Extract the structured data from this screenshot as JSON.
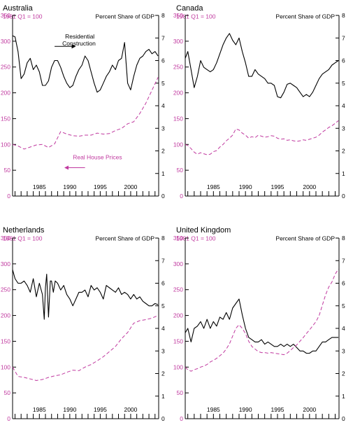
{
  "colors": {
    "prices": "#c0399f",
    "construction": "#000000",
    "axis": "#000000"
  },
  "chart_data": [
    {
      "type": "line",
      "title": "Australia",
      "left_axis_label": "1981 Q1 = 100",
      "right_axis_label": "Percent Share of GDP",
      "left_ylim": [
        0,
        350
      ],
      "left_ticks": [
        "0",
        "50",
        "100",
        "150",
        "200",
        "250",
        "300",
        "350"
      ],
      "right_ylim": [
        0,
        8
      ],
      "right_ticks": [
        "0",
        "1",
        "2",
        "3",
        "4",
        "5",
        "6",
        "7",
        "8"
      ],
      "xlim": [
        1980.6,
        2004.6
      ],
      "x_ticks": [
        "1985",
        "1990",
        "1995",
        "2000"
      ],
      "x_tick_values": [
        1985,
        1990,
        1995,
        2000
      ],
      "annotations": [
        "Residential Construction",
        "Real House Prices"
      ],
      "series": [
        {
          "axis": "right",
          "style": "solid",
          "x": [
            1980.6,
            1981,
            1981.5,
            1982,
            1982.5,
            1983,
            1983.5,
            1984,
            1984.5,
            1985,
            1985.5,
            1986,
            1986.5,
            1987,
            1987.5,
            1988,
            1988.5,
            1989,
            1989.5,
            1990,
            1990.5,
            1991,
            1991.5,
            1992,
            1992.5,
            1993,
            1993.5,
            1994,
            1994.5,
            1995,
            1995.5,
            1996,
            1996.5,
            1997,
            1997.5,
            1998,
            1998.5,
            1999,
            1999.5,
            2000,
            2000.5,
            2001,
            2001.5,
            2002,
            2002.5,
            2003,
            2003.5,
            2004,
            2004.5
          ],
          "values": [
            7.1,
            7.05,
            6.4,
            5.2,
            5.4,
            5.9,
            6.1,
            5.6,
            5.8,
            5.5,
            4.9,
            4.9,
            5.1,
            5.7,
            6.0,
            6.0,
            5.7,
            5.3,
            5.0,
            4.8,
            4.9,
            5.3,
            5.6,
            5.8,
            6.2,
            6.0,
            5.5,
            5.0,
            4.6,
            4.7,
            5.0,
            5.3,
            5.5,
            5.8,
            5.6,
            6.0,
            6.1,
            6.8,
            5.0,
            4.7,
            5.3,
            5.8,
            6.1,
            6.2,
            6.4,
            6.5,
            6.3,
            6.4,
            6.2
          ]
        },
        {
          "axis": "left",
          "style": "dashed",
          "x": [
            1980.6,
            1981.5,
            1982.5,
            1983.5,
            1984.5,
            1985.5,
            1986.5,
            1987.5,
            1988.5,
            1989.5,
            1990.5,
            1991.5,
            1992.5,
            1993.5,
            1994.5,
            1995.5,
            1996.5,
            1997.5,
            1998.5,
            1999.5,
            2000.5,
            2001.5,
            2002.5,
            2003.5,
            2004.5
          ],
          "values": [
            100,
            97,
            91,
            95,
            99,
            100,
            94,
            101,
            125,
            120,
            117,
            116,
            118,
            118,
            122,
            120,
            121,
            127,
            131,
            140,
            144,
            160,
            180,
            205,
            230
          ]
        }
      ]
    },
    {
      "type": "line",
      "title": "Canada",
      "left_axis_label": "1981 Q1 = 100",
      "right_axis_label": "Percent Share of GDP",
      "left_ylim": [
        0,
        350
      ],
      "left_ticks": [
        "0",
        "50",
        "100",
        "150",
        "200",
        "250",
        "300",
        "350"
      ],
      "right_ylim": [
        0,
        8
      ],
      "right_ticks": [
        "0",
        "1",
        "2",
        "3",
        "4",
        "5",
        "6",
        "7",
        "8"
      ],
      "xlim": [
        1980.6,
        2004.6
      ],
      "x_ticks": [
        "1985",
        "1990",
        "1995",
        "2000"
      ],
      "x_tick_values": [
        1985,
        1990,
        1995,
        2000
      ],
      "annotations": [],
      "series": [
        {
          "axis": "right",
          "style": "solid",
          "x": [
            1980.6,
            1981,
            1981.5,
            1982,
            1982.5,
            1983,
            1983.5,
            1984,
            1984.5,
            1985,
            1985.5,
            1986,
            1986.5,
            1987,
            1987.5,
            1988,
            1988.5,
            1989,
            1989.5,
            1990,
            1990.5,
            1991,
            1991.5,
            1992,
            1992.5,
            1993,
            1993.5,
            1994,
            1994.5,
            1995,
            1995.5,
            1996,
            1996.5,
            1997,
            1997.5,
            1998,
            1998.5,
            1999,
            1999.5,
            2000,
            2000.5,
            2001,
            2001.5,
            2002,
            2002.5,
            2003,
            2003.5,
            2004,
            2004.5
          ],
          "values": [
            6.1,
            6.4,
            5.6,
            4.8,
            5.3,
            6.0,
            5.7,
            5.6,
            5.5,
            5.6,
            5.9,
            6.3,
            6.7,
            7.0,
            7.2,
            6.9,
            6.7,
            7.0,
            6.4,
            5.9,
            5.3,
            5.3,
            5.6,
            5.4,
            5.3,
            5.2,
            5.0,
            5.0,
            4.9,
            4.4,
            4.35,
            4.6,
            4.95,
            5.0,
            4.9,
            4.8,
            4.6,
            4.4,
            4.5,
            4.4,
            4.6,
            4.9,
            5.2,
            5.4,
            5.5,
            5.6,
            5.8,
            5.9,
            6.0
          ]
        },
        {
          "axis": "left",
          "style": "dashed",
          "x": [
            1980.6,
            1981,
            1981.5,
            1982,
            1982.5,
            1983,
            1983.5,
            1984,
            1984.5,
            1985,
            1985.5,
            1986,
            1986.5,
            1987,
            1987.5,
            1988,
            1988.5,
            1989,
            1989.5,
            1990,
            1990.5,
            1991,
            1991.5,
            1992,
            1992.5,
            1993,
            1993.5,
            1994,
            1994.5,
            1995,
            1995.5,
            1996,
            1996.5,
            1997,
            1997.5,
            1998,
            1998.5,
            1999,
            1999.5,
            2000,
            2000.5,
            2001,
            2001.5,
            2002,
            2002.5,
            2003,
            2003.5,
            2004,
            2004.5
          ],
          "values": [
            100,
            98,
            92,
            85,
            81,
            84,
            82,
            80,
            81,
            86,
            88,
            95,
            100,
            107,
            112,
            118,
            130,
            128,
            122,
            118,
            112,
            115,
            113,
            118,
            116,
            114,
            115,
            117,
            116,
            112,
            110,
            111,
            108,
            109,
            107,
            106,
            107,
            109,
            108,
            110,
            112,
            114,
            118,
            124,
            128,
            133,
            136,
            141,
            146
          ]
        }
      ]
    },
    {
      "type": "line",
      "title": "Netherlands",
      "left_axis_label": "1981 Q1 = 100",
      "right_axis_label": "Percent Share of GDP",
      "left_ylim": [
        0,
        350
      ],
      "left_ticks": [
        "0",
        "50",
        "100",
        "150",
        "200",
        "250",
        "300",
        "350"
      ],
      "right_ylim": [
        0,
        8
      ],
      "right_ticks": [
        "0",
        "1",
        "2",
        "3",
        "4",
        "5",
        "6",
        "7",
        "8"
      ],
      "xlim": [
        1980.6,
        2004.6
      ],
      "x_ticks": [
        "1985",
        "1990",
        "1995",
        "2000"
      ],
      "x_tick_values": [
        1985,
        1990,
        1995,
        2000
      ],
      "annotations": [],
      "series": [
        {
          "axis": "right",
          "style": "solid",
          "x": [
            1980.6,
            1981,
            1981.5,
            1982,
            1982.5,
            1983,
            1983.5,
            1984,
            1984.5,
            1985,
            1985.5,
            1985.8,
            1986,
            1986.2,
            1986.5,
            1986.8,
            1987,
            1987.3,
            1987.6,
            1988,
            1988.5,
            1989,
            1989.5,
            1990,
            1990.5,
            1991,
            1991.5,
            1992,
            1992.5,
            1993,
            1993.5,
            1994,
            1994.5,
            1995,
            1995.5,
            1996,
            1996.5,
            1997,
            1997.5,
            1998,
            1998.5,
            1999,
            1999.5,
            2000,
            2000.5,
            2001,
            2001.5,
            2002,
            2002.5,
            2003,
            2003.5,
            2004,
            2004.5
          ],
          "values": [
            6.6,
            6.2,
            6.0,
            6.0,
            6.1,
            5.9,
            5.6,
            6.2,
            5.4,
            6.0,
            5.5,
            4.4,
            5.8,
            6.4,
            4.5,
            6.1,
            6.1,
            5.6,
            6.1,
            6.0,
            5.7,
            5.9,
            5.5,
            5.3,
            5.0,
            5.3,
            5.6,
            5.6,
            5.7,
            5.4,
            5.9,
            5.7,
            5.8,
            5.6,
            5.3,
            5.9,
            5.8,
            5.7,
            5.6,
            5.8,
            5.5,
            5.6,
            5.5,
            5.3,
            5.5,
            5.3,
            5.4,
            5.2,
            5.1,
            5.0,
            5.0,
            5.1,
            5.05
          ]
        },
        {
          "axis": "left",
          "style": "dashed",
          "x": [
            1980.6,
            1981.5,
            1982.5,
            1983.5,
            1984.5,
            1985.5,
            1986.5,
            1987.5,
            1988.5,
            1989.5,
            1990.5,
            1991.5,
            1992.5,
            1993.5,
            1994.5,
            1995.5,
            1996.5,
            1997.5,
            1998.5,
            1999.5,
            2000.5,
            2001.5,
            2002.5,
            2003.5,
            2004.5
          ],
          "values": [
            100,
            82,
            80,
            77,
            74,
            76,
            80,
            83,
            85,
            90,
            94,
            93,
            100,
            105,
            112,
            120,
            130,
            140,
            155,
            167,
            185,
            190,
            192,
            195,
            200
          ]
        }
      ]
    },
    {
      "type": "line",
      "title": "United Kingdom",
      "left_axis_label": "1981 Q1 = 100",
      "right_axis_label": "Percent Share of GDP",
      "left_ylim": [
        0,
        350
      ],
      "left_ticks": [
        "0",
        "50",
        "100",
        "150",
        "200",
        "250",
        "300",
        "350"
      ],
      "right_ylim": [
        0,
        8
      ],
      "right_ticks": [
        "0",
        "1",
        "2",
        "3",
        "4",
        "5",
        "6",
        "7",
        "8"
      ],
      "xlim": [
        1980.6,
        2004.6
      ],
      "x_ticks": [
        "1985",
        "1990",
        "1995",
        "2000"
      ],
      "x_tick_values": [
        1985,
        1990,
        1995,
        2000
      ],
      "annotations": [],
      "series": [
        {
          "axis": "right",
          "style": "solid",
          "x": [
            1980.6,
            1981,
            1981.5,
            1982,
            1982.5,
            1983,
            1983.5,
            1984,
            1984.5,
            1985,
            1985.5,
            1986,
            1986.5,
            1987,
            1987.5,
            1988,
            1988.5,
            1989,
            1989.5,
            1990,
            1990.5,
            1991,
            1991.5,
            1992,
            1992.5,
            1993,
            1993.5,
            1994,
            1994.5,
            1995,
            1995.5,
            1996,
            1996.5,
            1997,
            1997.5,
            1998,
            1998.5,
            1999,
            1999.5,
            2000,
            2000.5,
            2001,
            2001.5,
            2002,
            2002.5,
            2003,
            2003.5,
            2004,
            2004.5
          ],
          "values": [
            3.8,
            4.0,
            3.4,
            4.0,
            4.1,
            4.3,
            4.0,
            4.4,
            4.0,
            4.3,
            4.1,
            4.5,
            4.4,
            4.7,
            4.4,
            4.9,
            5.1,
            5.3,
            4.6,
            4.0,
            3.6,
            3.5,
            3.4,
            3.4,
            3.5,
            3.3,
            3.4,
            3.3,
            3.2,
            3.2,
            3.3,
            3.2,
            3.3,
            3.2,
            3.3,
            3.15,
            3.0,
            3.0,
            2.9,
            2.9,
            3.0,
            3.0,
            3.2,
            3.4,
            3.4,
            3.5,
            3.6,
            3.6,
            3.6
          ]
        },
        {
          "axis": "left",
          "style": "dashed",
          "x": [
            1980.6,
            1981,
            1981.5,
            1982,
            1982.5,
            1983,
            1983.5,
            1984,
            1984.5,
            1985,
            1985.5,
            1986,
            1986.5,
            1987,
            1987.5,
            1988,
            1988.5,
            1989,
            1989.5,
            1990,
            1990.5,
            1991,
            1991.5,
            1992,
            1992.5,
            1993,
            1993.5,
            1994,
            1994.5,
            1995,
            1995.5,
            1996,
            1996.5,
            1997,
            1997.5,
            1998,
            1998.5,
            1999,
            1999.5,
            2000,
            2000.5,
            2001,
            2001.5,
            2002,
            2002.5,
            2003,
            2003.5,
            2004,
            2004.5
          ],
          "values": [
            100,
            95,
            92,
            95,
            97,
            100,
            102,
            105,
            110,
            113,
            117,
            122,
            127,
            135,
            145,
            160,
            175,
            182,
            175,
            165,
            150,
            140,
            135,
            130,
            128,
            128,
            127,
            128,
            127,
            126,
            125,
            124,
            127,
            132,
            138,
            143,
            150,
            157,
            165,
            172,
            180,
            188,
            200,
            220,
            240,
            255,
            265,
            280,
            290
          ]
        }
      ]
    }
  ]
}
